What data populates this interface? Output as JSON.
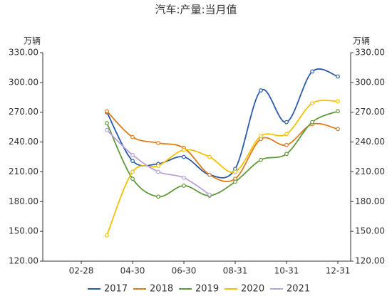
{
  "chart_data": {
    "type": "line",
    "title": "汽车:产量:当月值",
    "y_label": "万辆",
    "y2_label": "万辆",
    "categories": [
      null,
      "02-28",
      null,
      "04-30",
      null,
      "06-30",
      null,
      "08-31",
      null,
      "10-31",
      null,
      "12-31"
    ],
    "ylim": [
      120,
      330
    ],
    "yticks": [
      {
        "value": 120,
        "label": "120.00"
      },
      {
        "value": 150,
        "label": "150.00"
      },
      {
        "value": 180,
        "label": "180.00"
      },
      {
        "value": 210,
        "label": "210.00"
      },
      {
        "value": 240,
        "label": "240.00"
      },
      {
        "value": 270,
        "label": "270.00"
      },
      {
        "value": 300,
        "label": "300.00"
      },
      {
        "value": 330,
        "label": "330.00"
      }
    ],
    "y2lim": [
      120,
      330
    ],
    "y2ticks": [
      {
        "value": 120,
        "label": "120.00"
      },
      {
        "value": 150,
        "label": "150.00"
      },
      {
        "value": 180,
        "label": "180.00"
      },
      {
        "value": 210,
        "label": "210.00"
      },
      {
        "value": 240,
        "label": "240.00"
      },
      {
        "value": 270,
        "label": "270.00"
      },
      {
        "value": 300,
        "label": "300.00"
      },
      {
        "value": 330,
        "label": "330.00"
      }
    ],
    "grid": false,
    "legend": "bottom",
    "series": [
      {
        "name": "2017",
        "color": "#2b5aa8",
        "values": [
          null,
          null,
          270,
          221,
          218,
          225,
          207,
          213,
          292,
          260,
          311,
          306
        ]
      },
      {
        "name": "2018",
        "color": "#e07b1a",
        "values": [
          null,
          null,
          271,
          245,
          239,
          234,
          207,
          203,
          243,
          237,
          258,
          253
        ]
      },
      {
        "name": "2019",
        "color": "#5f9a3a",
        "values": [
          null,
          null,
          259,
          203,
          185,
          196,
          186,
          200,
          222,
          228,
          260,
          271
        ]
      },
      {
        "name": "2020",
        "color": "#f2c200",
        "values": [
          null,
          null,
          146,
          210,
          216,
          232,
          225,
          210,
          246,
          248,
          279,
          281
        ]
      },
      {
        "name": "2021",
        "color": "#b8a0d8",
        "values": [
          null,
          null,
          252,
          227,
          210,
          204,
          187,
          null,
          null,
          null,
          null,
          null
        ]
      }
    ]
  }
}
